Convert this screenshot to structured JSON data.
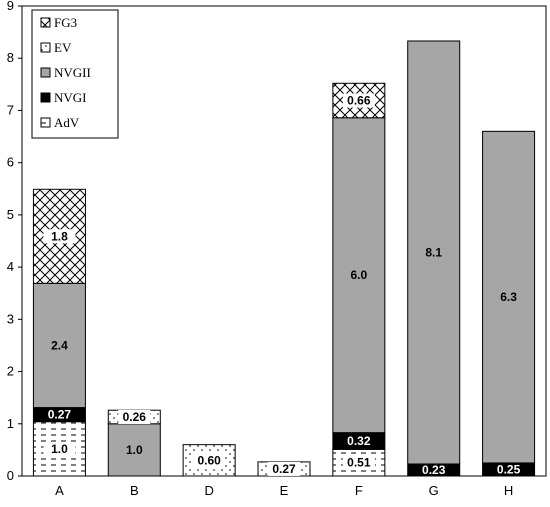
{
  "chart_data": {
    "type": "bar",
    "stacked": true,
    "categories": [
      "A",
      "B",
      "D",
      "E",
      "F",
      "G",
      "H"
    ],
    "ylim": [
      0,
      9
    ],
    "yticks": [
      0,
      1,
      2,
      3,
      4,
      5,
      6,
      7,
      8,
      9
    ],
    "grid": false,
    "legend_position": "top-left",
    "series": [
      {
        "name": "AdV",
        "pattern": "dashes",
        "values": [
          1.04,
          0,
          0,
          0,
          0.51,
          0,
          0
        ],
        "labels": [
          "1.0",
          "",
          "",
          "",
          "0.51",
          "",
          ""
        ]
      },
      {
        "name": "NVGI",
        "pattern": "solid-black",
        "values": [
          0.27,
          0,
          0,
          0,
          0.32,
          0.23,
          0.25
        ],
        "labels": [
          "0.27",
          "",
          "",
          "",
          "0.32",
          "0.23",
          "0.25"
        ]
      },
      {
        "name": "NVGII",
        "pattern": "solid-gray",
        "values": [
          2.38,
          1.0,
          0,
          0,
          6.03,
          8.1,
          6.35
        ],
        "labels": [
          "2.4",
          "1.0",
          "",
          "",
          "6.0",
          "8.1",
          "6.3"
        ]
      },
      {
        "name": "EV",
        "pattern": "dots",
        "values": [
          0,
          0.26,
          0.6,
          0.27,
          0,
          0,
          0
        ],
        "labels": [
          "",
          "0.26",
          "0.60",
          "0.27",
          "",
          "",
          ""
        ]
      },
      {
        "name": "FG3",
        "pattern": "crosshatch",
        "values": [
          1.8,
          0,
          0,
          0,
          0.66,
          0,
          0
        ],
        "labels": [
          "1.8",
          "",
          "",
          "",
          "0.66",
          "",
          ""
        ]
      }
    ],
    "legend_order": [
      "FG3",
      "EV",
      "NVGII",
      "NVGI",
      "AdV"
    ],
    "colors": {
      "gray": "#a6a6a6",
      "black": "#000000",
      "white": "#ffffff"
    }
  }
}
